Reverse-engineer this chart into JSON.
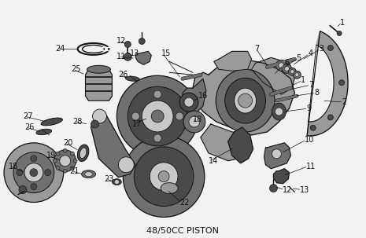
{
  "title": "48/50CC PISTON",
  "bg_color": "#f0f0f0",
  "fig_width": 4.65,
  "fig_height": 3.03,
  "dpi": 100,
  "image_b64": ""
}
